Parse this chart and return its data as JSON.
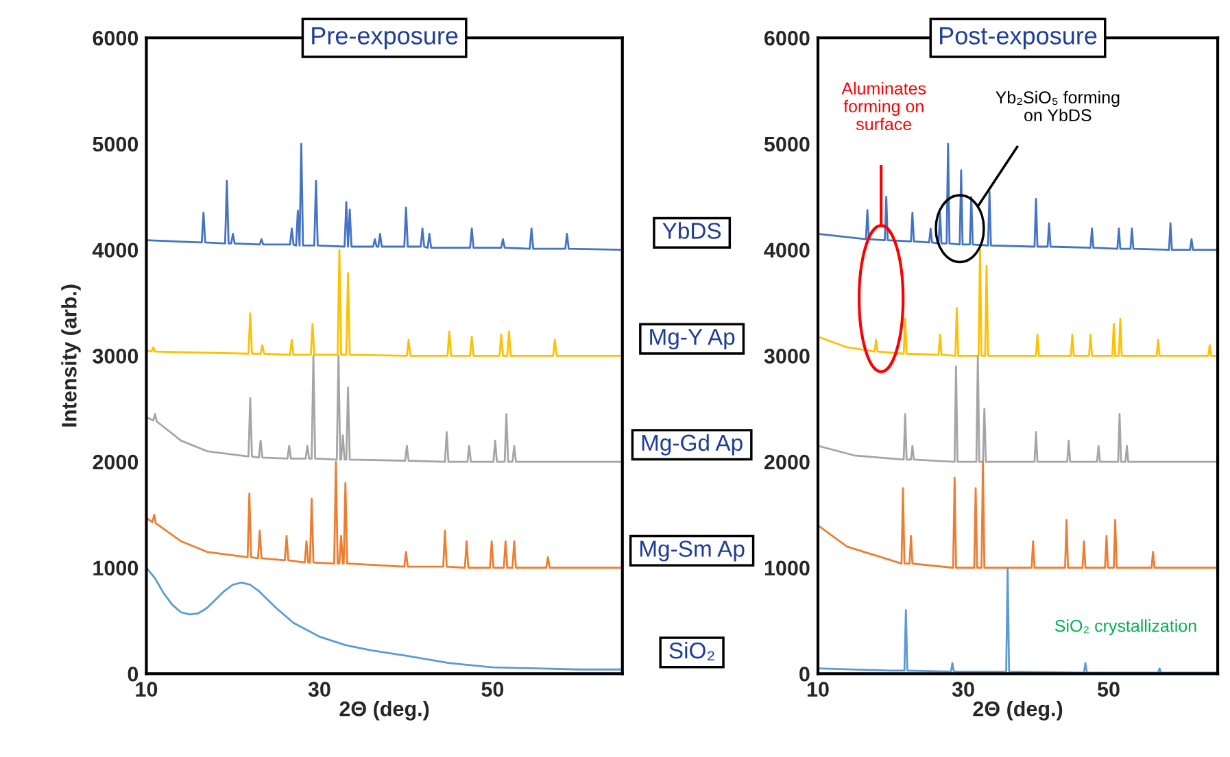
{
  "chart_data": [
    {
      "type": "line",
      "title": "Pre-exposure",
      "xlabel": "2Θ (deg.)",
      "ylabel": "Intensity (arb.)",
      "xlim": [
        10,
        65
      ],
      "ylim": [
        0,
        6000
      ],
      "xticks": [
        10,
        30,
        50
      ],
      "yticks": [
        0,
        1000,
        2000,
        3000,
        4000,
        5000,
        6000
      ],
      "grid": false,
      "legend": false,
      "series": [
        {
          "name": "YbDS",
          "color": "#4472c4",
          "x": [
            10,
            16.4,
            16.6,
            16.8,
            19.1,
            19.3,
            19.5,
            19.8,
            20,
            20.2,
            23.1,
            23.3,
            23.5,
            26.6,
            26.8,
            27,
            27.3,
            27.5,
            27.7,
            27.9,
            28.1,
            29.4,
            29.6,
            29.8,
            32.9,
            33.1,
            33.3,
            33.5,
            33.7,
            36.2,
            36.4,
            36.6,
            36.8,
            37,
            37.2,
            39.8,
            40,
            40.2,
            41.7,
            41.9,
            42.1,
            42.5,
            42.7,
            42.9,
            47.4,
            47.6,
            47.8,
            51,
            51.2,
            51.4,
            54.3,
            54.5,
            54.7,
            58.4,
            58.6,
            58.8,
            65
          ],
          "values": [
            4090,
            4070,
            4350,
            4070,
            4060,
            4650,
            4060,
            4060,
            4150,
            4060,
            4050,
            4100,
            4050,
            4050,
            4200,
            4050,
            4040,
            4370,
            4040,
            5000,
            4040,
            4040,
            4650,
            4040,
            4030,
            4450,
            4030,
            4380,
            4030,
            4030,
            4100,
            4030,
            4030,
            4150,
            4030,
            4030,
            4400,
            4030,
            4030,
            4200,
            4030,
            4020,
            4150,
            4020,
            4020,
            4200,
            4020,
            4020,
            4100,
            4020,
            4010,
            4200,
            4010,
            4010,
            4150,
            4010,
            4000
          ]
        },
        {
          "name": "Mg-Y Ap",
          "color": "#ffc000",
          "x": [
            10,
            10.6,
            10.8,
            11,
            21.8,
            22,
            22.2,
            23.2,
            23.4,
            23.6,
            26.6,
            26.8,
            27,
            29,
            29.2,
            29.4,
            32.1,
            32.3,
            32.5,
            33.1,
            33.3,
            33.5,
            40.1,
            40.3,
            40.5,
            44.8,
            45,
            45.2,
            47.4,
            47.6,
            47.8,
            50.8,
            51,
            51.2,
            51.7,
            51.9,
            52.1,
            57,
            57.2,
            57.4,
            65
          ],
          "values": [
            3050,
            3040,
            3080,
            3040,
            3020,
            3400,
            3020,
            3020,
            3100,
            3020,
            3010,
            3150,
            3010,
            3010,
            3300,
            3010,
            3010,
            4000,
            3010,
            3010,
            3780,
            3010,
            3000,
            3150,
            3000,
            3000,
            3230,
            3000,
            3000,
            3180,
            3000,
            3000,
            3200,
            3000,
            3000,
            3230,
            3000,
            3000,
            3150,
            3000,
            3000
          ]
        },
        {
          "name": "Mg-Gd Ap",
          "color": "#a5a5a5",
          "x": [
            10,
            10.8,
            11,
            11.2,
            14,
            17,
            21.8,
            22,
            22.2,
            23,
            23.2,
            23.4,
            26.3,
            26.5,
            26.7,
            28.4,
            28.6,
            28.8,
            29.1,
            29.3,
            29.5,
            32,
            32.2,
            32.4,
            32.5,
            32.7,
            32.9,
            33.1,
            33.3,
            33.5,
            39.9,
            40.1,
            40.3,
            44.5,
            44.7,
            44.9,
            47.1,
            47.3,
            47.5,
            50.1,
            50.3,
            50.5,
            51.4,
            51.6,
            51.8,
            52.3,
            52.5,
            52.7,
            65
          ],
          "values": [
            2420,
            2390,
            2450,
            2380,
            2200,
            2100,
            2050,
            2600,
            2050,
            2040,
            2200,
            2040,
            2030,
            2150,
            2030,
            2030,
            2150,
            2030,
            2030,
            3000,
            2030,
            2020,
            3000,
            2020,
            2020,
            2250,
            2020,
            2020,
            2700,
            2020,
            2010,
            2150,
            2010,
            2000,
            2280,
            2000,
            2000,
            2150,
            2000,
            2000,
            2200,
            2000,
            2000,
            2450,
            2000,
            2000,
            2150,
            2000,
            2000
          ]
        },
        {
          "name": "Mg-Sm Ap",
          "color": "#ed7d31",
          "x": [
            10,
            10.7,
            10.9,
            11.1,
            14,
            17,
            21.7,
            21.9,
            22.1,
            22.9,
            23.1,
            23.3,
            26,
            26.2,
            26.4,
            28.3,
            28.5,
            28.7,
            28.9,
            29.1,
            29.3,
            31.7,
            31.9,
            32.1,
            32.3,
            32.5,
            32.7,
            32.8,
            33,
            33.2,
            39.8,
            40,
            40.2,
            44.3,
            44.5,
            44.7,
            46.8,
            47,
            47.2,
            49.7,
            49.9,
            50.1,
            51.3,
            51.5,
            51.7,
            52.3,
            52.5,
            52.7,
            56.2,
            56.4,
            56.6,
            65
          ],
          "values": [
            1470,
            1430,
            1500,
            1420,
            1250,
            1150,
            1100,
            1700,
            1100,
            1090,
            1350,
            1090,
            1070,
            1300,
            1070,
            1050,
            1250,
            1050,
            1050,
            1650,
            1050,
            1040,
            2000,
            1040,
            1040,
            1300,
            1040,
            1040,
            1800,
            1040,
            1010,
            1150,
            1010,
            1010,
            1350,
            1010,
            1000,
            1250,
            1000,
            1000,
            1250,
            1000,
            1000,
            1250,
            1000,
            1000,
            1250,
            1000,
            1000,
            1100,
            1000,
            1000
          ]
        },
        {
          "name": "SiO₂",
          "color": "#5b9bd5",
          "x": [
            10,
            11,
            12,
            13,
            14,
            15,
            16,
            17,
            18,
            19,
            20,
            21,
            22,
            23,
            24,
            25,
            27,
            30,
            33,
            36,
            40,
            45,
            50,
            55,
            60,
            65
          ],
          "values": [
            1000,
            900,
            760,
            650,
            580,
            560,
            570,
            620,
            700,
            780,
            840,
            860,
            840,
            780,
            700,
            620,
            480,
            350,
            270,
            220,
            170,
            100,
            60,
            50,
            40,
            40
          ]
        }
      ]
    },
    {
      "type": "line",
      "title": "Post-exposure",
      "xlabel": "2Θ (deg.)",
      "xlim": [
        10,
        65
      ],
      "ylim": [
        0,
        6000
      ],
      "xticks": [
        10,
        30,
        50
      ],
      "yticks": [
        0,
        1000,
        2000,
        3000,
        4000,
        5000,
        6000
      ],
      "grid": false,
      "legend": false,
      "series": [
        {
          "color": "#4472c4",
          "x": [
            10,
            16.6,
            16.8,
            17,
            19.2,
            19.4,
            19.6,
            22.8,
            23,
            23.2,
            25.3,
            25.5,
            25.7,
            26.6,
            26.8,
            27,
            27.7,
            27.9,
            28.1,
            29.5,
            29.7,
            29.9,
            30.9,
            31.1,
            31.3,
            33.4,
            33.6,
            33.8,
            39.8,
            40,
            40.2,
            41.6,
            41.8,
            42,
            47.5,
            47.7,
            47.9,
            51.2,
            51.4,
            51.6,
            53,
            53.2,
            53.4,
            58.3,
            58.5,
            58.7,
            61.2,
            61.4,
            61.6,
            65
          ],
          "values": [
            4150,
            4100,
            4375,
            4100,
            4090,
            4500,
            4090,
            4080,
            4350,
            4080,
            4070,
            4200,
            4070,
            4060,
            4350,
            4060,
            4060,
            5000,
            4060,
            4050,
            4750,
            4050,
            4050,
            4500,
            4050,
            4040,
            4550,
            4040,
            4030,
            4480,
            4030,
            4030,
            4250,
            4030,
            4020,
            4200,
            4020,
            4010,
            4200,
            4010,
            4010,
            4200,
            4010,
            4000,
            4250,
            4000,
            4000,
            4100,
            4000,
            4000
          ]
        },
        {
          "color": "#ffc000",
          "x": [
            10,
            14,
            17.8,
            18,
            18.2,
            21.8,
            22,
            22.2,
            26.6,
            26.8,
            27,
            28.9,
            29.1,
            29.3,
            32.1,
            32.3,
            32.5,
            33,
            33.2,
            33.4,
            40,
            40.2,
            40.4,
            44.8,
            45,
            45.2,
            47.3,
            47.5,
            47.7,
            50.5,
            50.7,
            50.9,
            51.4,
            51.6,
            51.8,
            56.6,
            56.8,
            57,
            63.7,
            63.9,
            64.1,
            65
          ],
          "values": [
            3180,
            3080,
            3040,
            3150,
            3040,
            3020,
            3350,
            3020,
            3010,
            3200,
            3010,
            3000,
            3450,
            3000,
            3000,
            4000,
            3000,
            3000,
            3850,
            3000,
            3000,
            3200,
            3000,
            3000,
            3200,
            3000,
            3000,
            3200,
            3000,
            3000,
            3300,
            3000,
            3000,
            3350,
            3000,
            3000,
            3150,
            3000,
            3000,
            3100,
            3000,
            3000
          ]
        },
        {
          "color": "#a5a5a5",
          "x": [
            10,
            15,
            21.8,
            22,
            22.2,
            22.8,
            23,
            23.2,
            28.8,
            29,
            29.2,
            31.8,
            32,
            32.2,
            32.7,
            32.9,
            33.1,
            39.8,
            40,
            40.2,
            44.3,
            44.5,
            44.7,
            48.4,
            48.6,
            48.8,
            51.3,
            51.5,
            51.7,
            52.3,
            52.5,
            52.7,
            65
          ],
          "values": [
            2150,
            2060,
            2020,
            2450,
            2020,
            2020,
            2150,
            2020,
            2000,
            2900,
            2000,
            2000,
            3000,
            2000,
            2000,
            2500,
            2000,
            2000,
            2280,
            2000,
            2000,
            2200,
            2000,
            2000,
            2150,
            2000,
            2000,
            2450,
            2000,
            2000,
            2150,
            2000,
            2000
          ]
        },
        {
          "color": "#ed7d31",
          "x": [
            10,
            14,
            21.5,
            21.7,
            21.9,
            22.6,
            22.8,
            23,
            28.6,
            28.8,
            29,
            31.5,
            31.7,
            31.9,
            32.5,
            32.7,
            32.9,
            39.4,
            39.6,
            39.8,
            44,
            44.2,
            44.4,
            46.4,
            46.6,
            46.8,
            49.5,
            49.7,
            49.9,
            50.7,
            50.9,
            51.1,
            55.9,
            56.1,
            56.3,
            65
          ],
          "values": [
            1400,
            1200,
            1040,
            1750,
            1040,
            1040,
            1300,
            1040,
            1000,
            1850,
            1000,
            1000,
            1750,
            1000,
            1000,
            2000,
            1000,
            1000,
            1250,
            1000,
            1000,
            1450,
            1000,
            1000,
            1250,
            1000,
            1000,
            1300,
            1000,
            1000,
            1450,
            1000,
            1000,
            1150,
            1000,
            1000
          ]
        },
        {
          "color": "#5b9bd5",
          "x": [
            10,
            20,
            21.9,
            22.1,
            22.3,
            28.3,
            28.5,
            28.7,
            35.9,
            36.1,
            36.3,
            46.6,
            46.8,
            47,
            56.8,
            57,
            57.2,
            65
          ],
          "values": [
            50,
            30,
            30,
            600,
            30,
            20,
            100,
            20,
            20,
            1000,
            20,
            10,
            100,
            10,
            10,
            50,
            10,
            10
          ]
        }
      ],
      "annotations": [
        "Aluminates\nforming on\nsurface",
        "Yb₂SiO₅ forming\non YbDS",
        "SiO₂ crystallization"
      ]
    }
  ]
}
